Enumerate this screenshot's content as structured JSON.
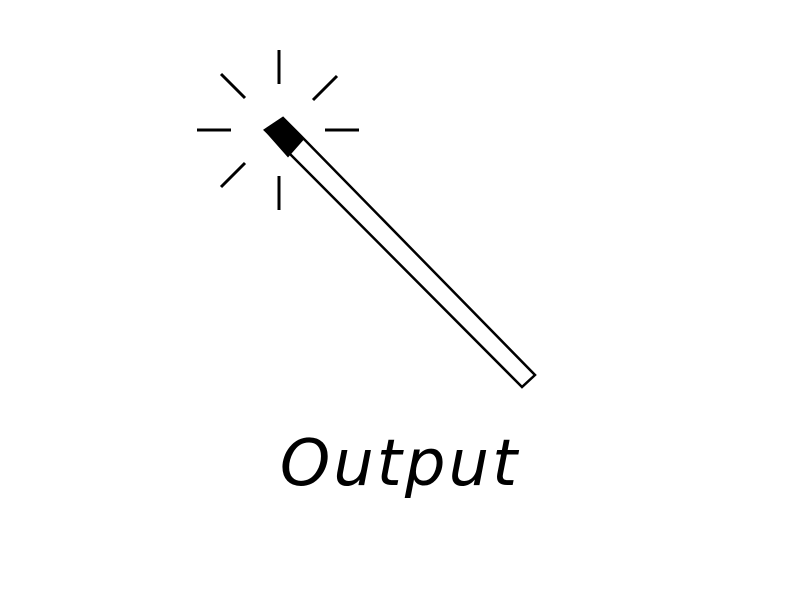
{
  "caption": {
    "text": "Output"
  },
  "icon": {
    "name": "magic-wand-icon"
  },
  "colors": {
    "background": "#ffffff",
    "ink": "#000000"
  }
}
